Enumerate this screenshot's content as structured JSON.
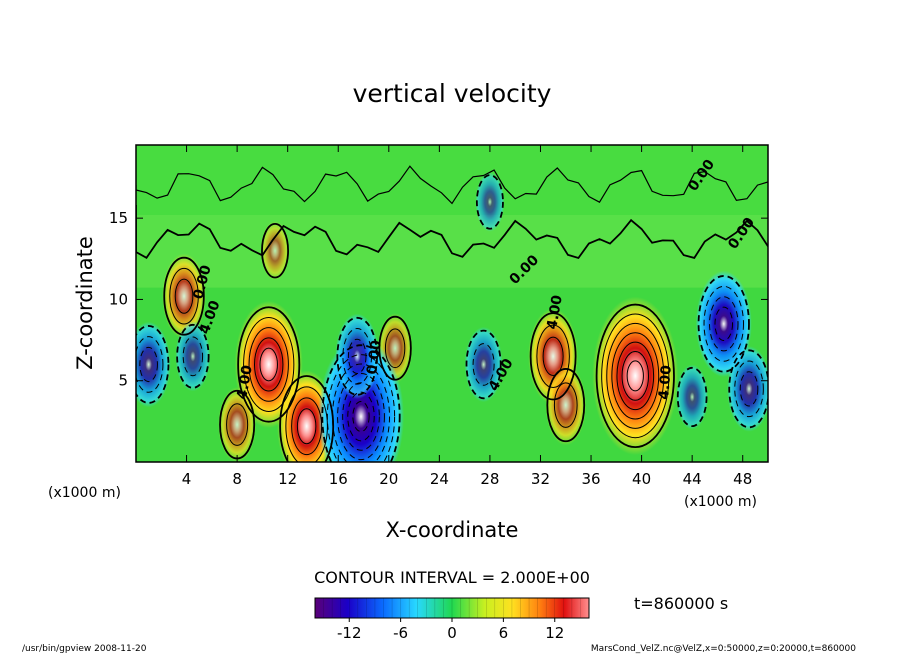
{
  "chart_data": {
    "type": "heatmap",
    "title": "vertical velocity",
    "xlabel": "X-coordinate",
    "ylabel": "Z-coordinate",
    "x_unit": "(x1000 m)",
    "z_unit": "(x1000 m)",
    "xlim": [
      0,
      50
    ],
    "ylim": [
      0,
      19.5
    ],
    "xticks": [
      4,
      8,
      12,
      16,
      20,
      24,
      28,
      32,
      36,
      40,
      44,
      48
    ],
    "yticks": [
      5,
      10,
      15
    ],
    "contour_interval_text": "CONTOUR INTERVAL = 2.000E+00",
    "contour_labels": [
      "4.00",
      "0.00"
    ],
    "time_text": "t=860000 s",
    "colorbar": {
      "min": -16,
      "max": 16,
      "ticks": [
        -12,
        -6,
        0,
        6,
        12
      ]
    },
    "features": [
      {
        "x": 10.5,
        "z": 6.0,
        "w": 16,
        "sign": 1
      },
      {
        "x": 13.5,
        "z": 2.2,
        "w": 13,
        "sign": 1
      },
      {
        "x": 3.8,
        "z": 10.2,
        "w": 8,
        "sign": 1
      },
      {
        "x": 8.0,
        "z": 2.3,
        "w": 6,
        "sign": 1
      },
      {
        "x": 33.0,
        "z": 6.5,
        "w": 10,
        "sign": 1
      },
      {
        "x": 34.0,
        "z": 3.5,
        "w": 7,
        "sign": 1
      },
      {
        "x": 39.5,
        "z": 5.3,
        "w": 22,
        "sign": 1
      },
      {
        "x": 20.5,
        "z": 7.0,
        "w": 5,
        "sign": 1
      },
      {
        "x": 17.8,
        "z": 2.8,
        "w": -22,
        "sign": -1
      },
      {
        "x": 17.5,
        "z": 6.5,
        "w": -8,
        "sign": -1
      },
      {
        "x": 1.0,
        "z": 6.0,
        "w": -8,
        "sign": -1
      },
      {
        "x": 4.5,
        "z": 6.5,
        "w": -5,
        "sign": -1
      },
      {
        "x": 27.5,
        "z": 6.0,
        "w": -6,
        "sign": -1
      },
      {
        "x": 46.5,
        "z": 8.5,
        "w": -12,
        "sign": -1
      },
      {
        "x": 48.5,
        "z": 4.5,
        "w": -8,
        "sign": -1
      },
      {
        "x": 44.0,
        "z": 4.0,
        "w": -4,
        "sign": -1
      },
      {
        "x": 11.0,
        "z": 13.0,
        "w": 3,
        "sign": 1
      },
      {
        "x": 28.0,
        "z": 16.0,
        "w": -3,
        "sign": -1
      }
    ]
  },
  "footer": {
    "left": "/usr/bin/gpview 2008-11-20",
    "right": "MarsCond_VelZ.nc@VelZ,x=0:50000,z=0:20000,t=860000"
  }
}
